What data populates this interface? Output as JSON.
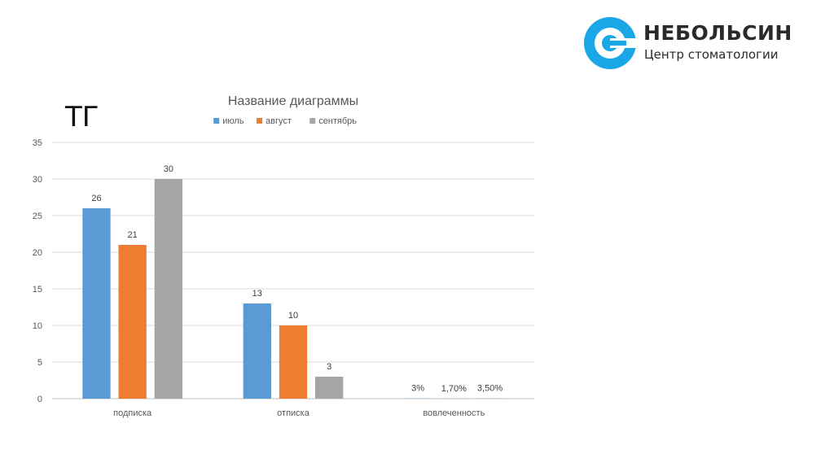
{
  "slide": {
    "heading": "ТГ"
  },
  "logo": {
    "name": "НЕБОЛЬСИН",
    "tagline": "Центр стоматологии",
    "icon": "logo-c-ring-icon",
    "color": "#1aa7e8"
  },
  "chart_data": {
    "type": "bar",
    "title": "Название диаграммы",
    "legend_position": "top",
    "grid": true,
    "ylim": [
      0,
      35
    ],
    "yticks": [
      0,
      5,
      10,
      15,
      20,
      25,
      30,
      35
    ],
    "categories": [
      "подписка",
      "отписка",
      "вовлеченность"
    ],
    "series": [
      {
        "name": "июль",
        "color": "#5b9bd5",
        "values": [
          26,
          13,
          0.03
        ],
        "labels": [
          "26",
          "13",
          "3%"
        ]
      },
      {
        "name": "август",
        "color": "#ed7d31",
        "values": [
          21,
          10,
          0.017
        ],
        "labels": [
          "21",
          "10",
          "1,70%"
        ]
      },
      {
        "name": "сентябрь",
        "color": "#a5a5a5",
        "values": [
          30,
          3,
          0.035
        ],
        "labels": [
          "30",
          "3",
          "3,50%"
        ]
      }
    ]
  }
}
